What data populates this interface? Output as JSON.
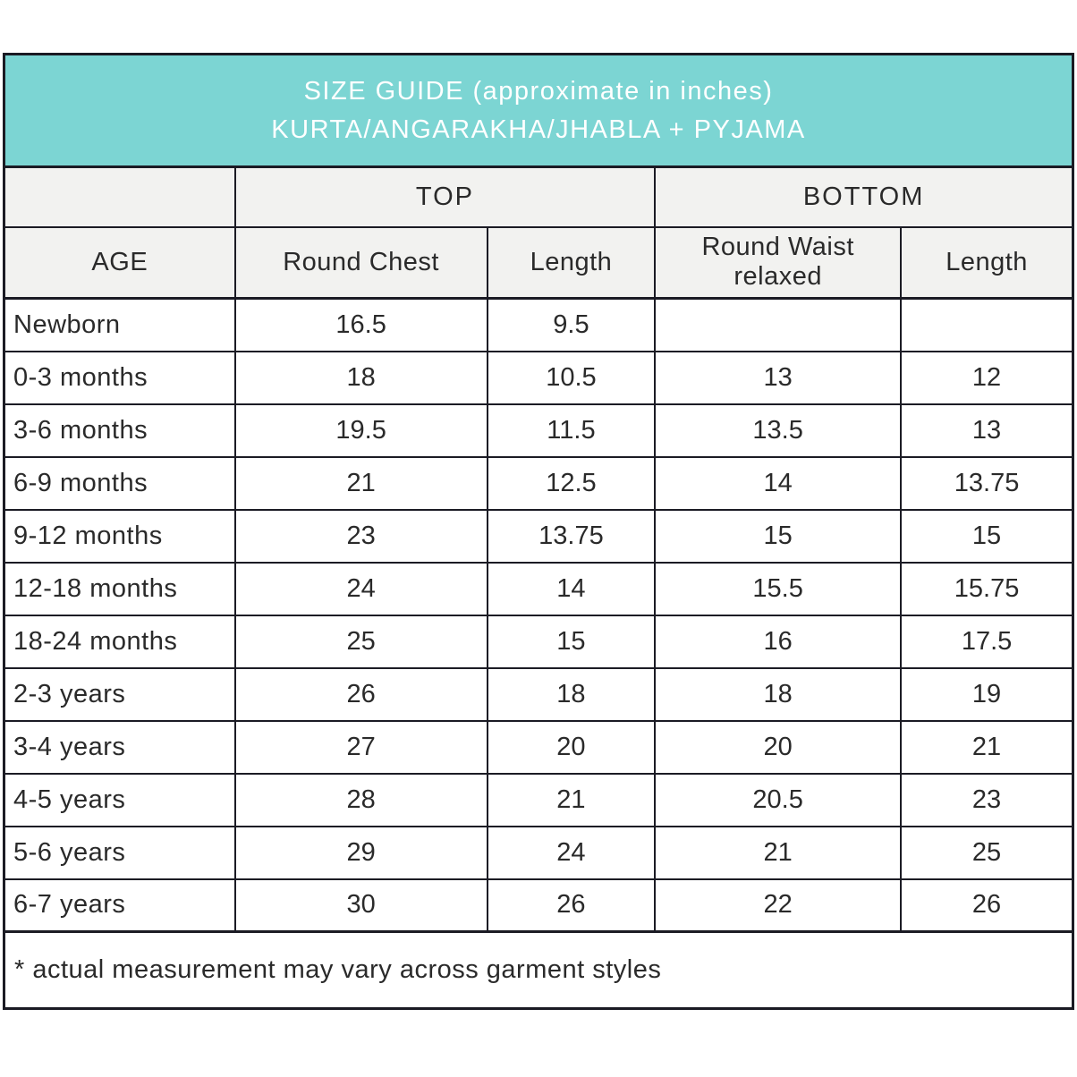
{
  "banner": {
    "title_line1": "SIZE GUIDE (approximate in inches)",
    "title_line2": "KURTA/ANGARAKHA/JHABLA + PYJAMA"
  },
  "chart_data": {
    "type": "table",
    "title": "SIZE GUIDE (approximate in inches) KURTA/ANGARAKHA/JHABLA + PYJAMA",
    "column_groups": [
      {
        "label": "",
        "span": 1
      },
      {
        "label": "TOP",
        "span": 2
      },
      {
        "label": "BOTTOM",
        "span": 2
      }
    ],
    "columns": [
      "AGE",
      "Round Chest",
      "Length",
      "Round Waist relaxed",
      "Length"
    ],
    "rows": [
      [
        "Newborn",
        "16.5",
        "9.5",
        "",
        ""
      ],
      [
        "0-3 months",
        "18",
        "10.5",
        "13",
        "12"
      ],
      [
        "3-6 months",
        "19.5",
        "11.5",
        "13.5",
        "13"
      ],
      [
        "6-9 months",
        "21",
        "12.5",
        "14",
        "13.75"
      ],
      [
        "9-12 months",
        "23",
        "13.75",
        "15",
        "15"
      ],
      [
        "12-18 months",
        "24",
        "14",
        "15.5",
        "15.75"
      ],
      [
        "18-24 months",
        "25",
        "15",
        "16",
        "17.5"
      ],
      [
        "2-3 years",
        "26",
        "18",
        "18",
        "19"
      ],
      [
        "3-4 years",
        "27",
        "20",
        "20",
        "21"
      ],
      [
        "4-5 years",
        "28",
        "21",
        "20.5",
        "23"
      ],
      [
        "5-6 years",
        "29",
        "24",
        "21",
        "25"
      ],
      [
        "6-7 years",
        "30",
        "26",
        "22",
        "26"
      ]
    ],
    "footnote": "* actual measurement may vary across garment styles",
    "units": "inches"
  },
  "colors": {
    "banner_bg": "#7cd5d3",
    "banner_text": "#ffffff",
    "header_bg": "#f2f2f0",
    "cell_bg": "#ffffff",
    "border": "#1b1b24",
    "text": "#2a2a2a"
  },
  "layout": {
    "column_widths_pct": [
      21.6,
      23.6,
      15.7,
      23.0,
      16.1
    ]
  }
}
